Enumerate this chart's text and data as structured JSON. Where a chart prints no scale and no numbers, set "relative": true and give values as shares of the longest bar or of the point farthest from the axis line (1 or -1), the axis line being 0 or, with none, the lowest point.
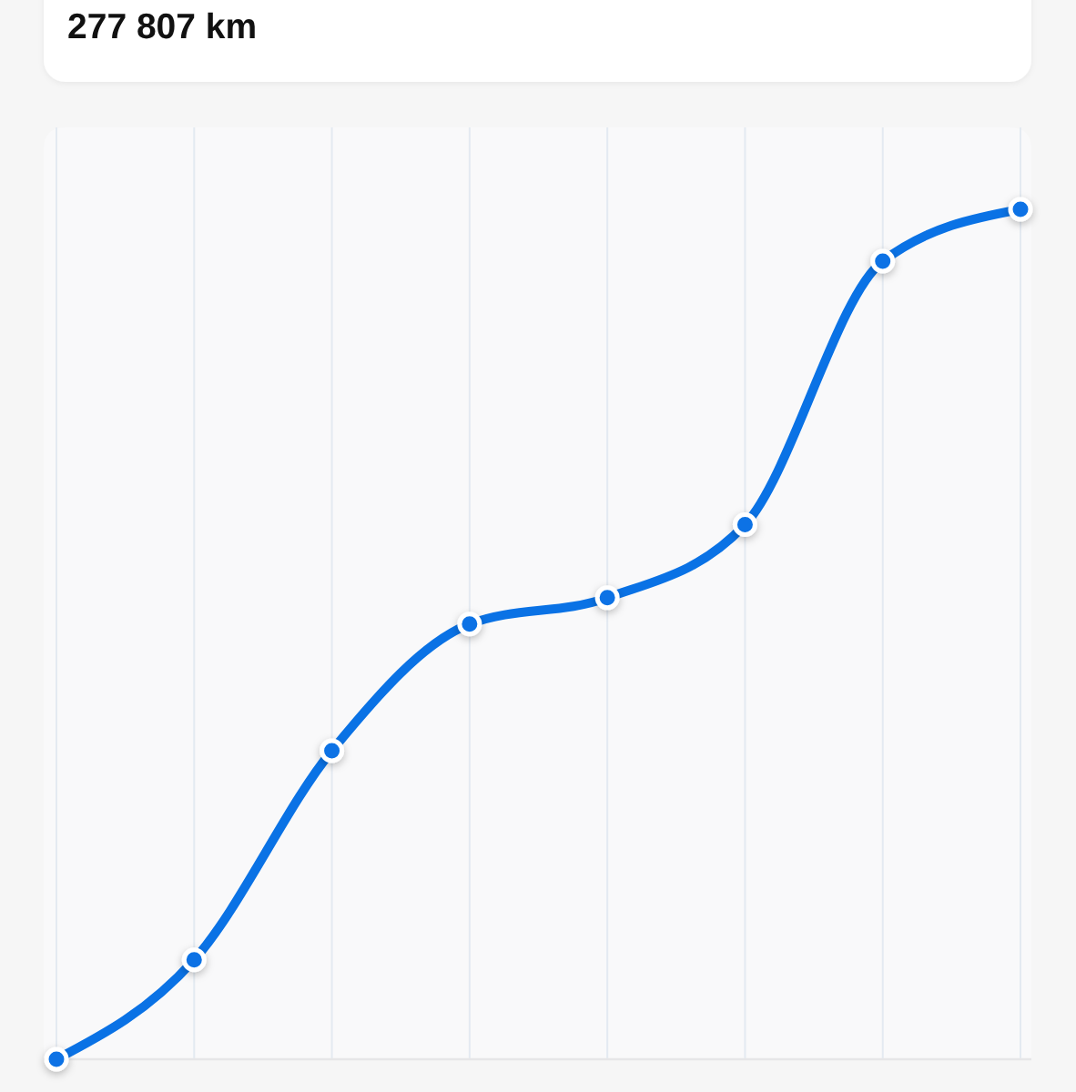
{
  "chart_data": {
    "type": "line",
    "title": "277 807 km",
    "categories": [
      null,
      null,
      null,
      null,
      null,
      null,
      null,
      null
    ],
    "series": [
      {
        "color": "#0a72e5",
        "values": [
          0,
          0.117,
          0.363,
          0.512,
          0.543,
          0.629,
          0.939,
          1
        ]
      }
    ],
    "relative": true,
    "grid": "x",
    "marker": "circle",
    "line_style": "solid"
  }
}
